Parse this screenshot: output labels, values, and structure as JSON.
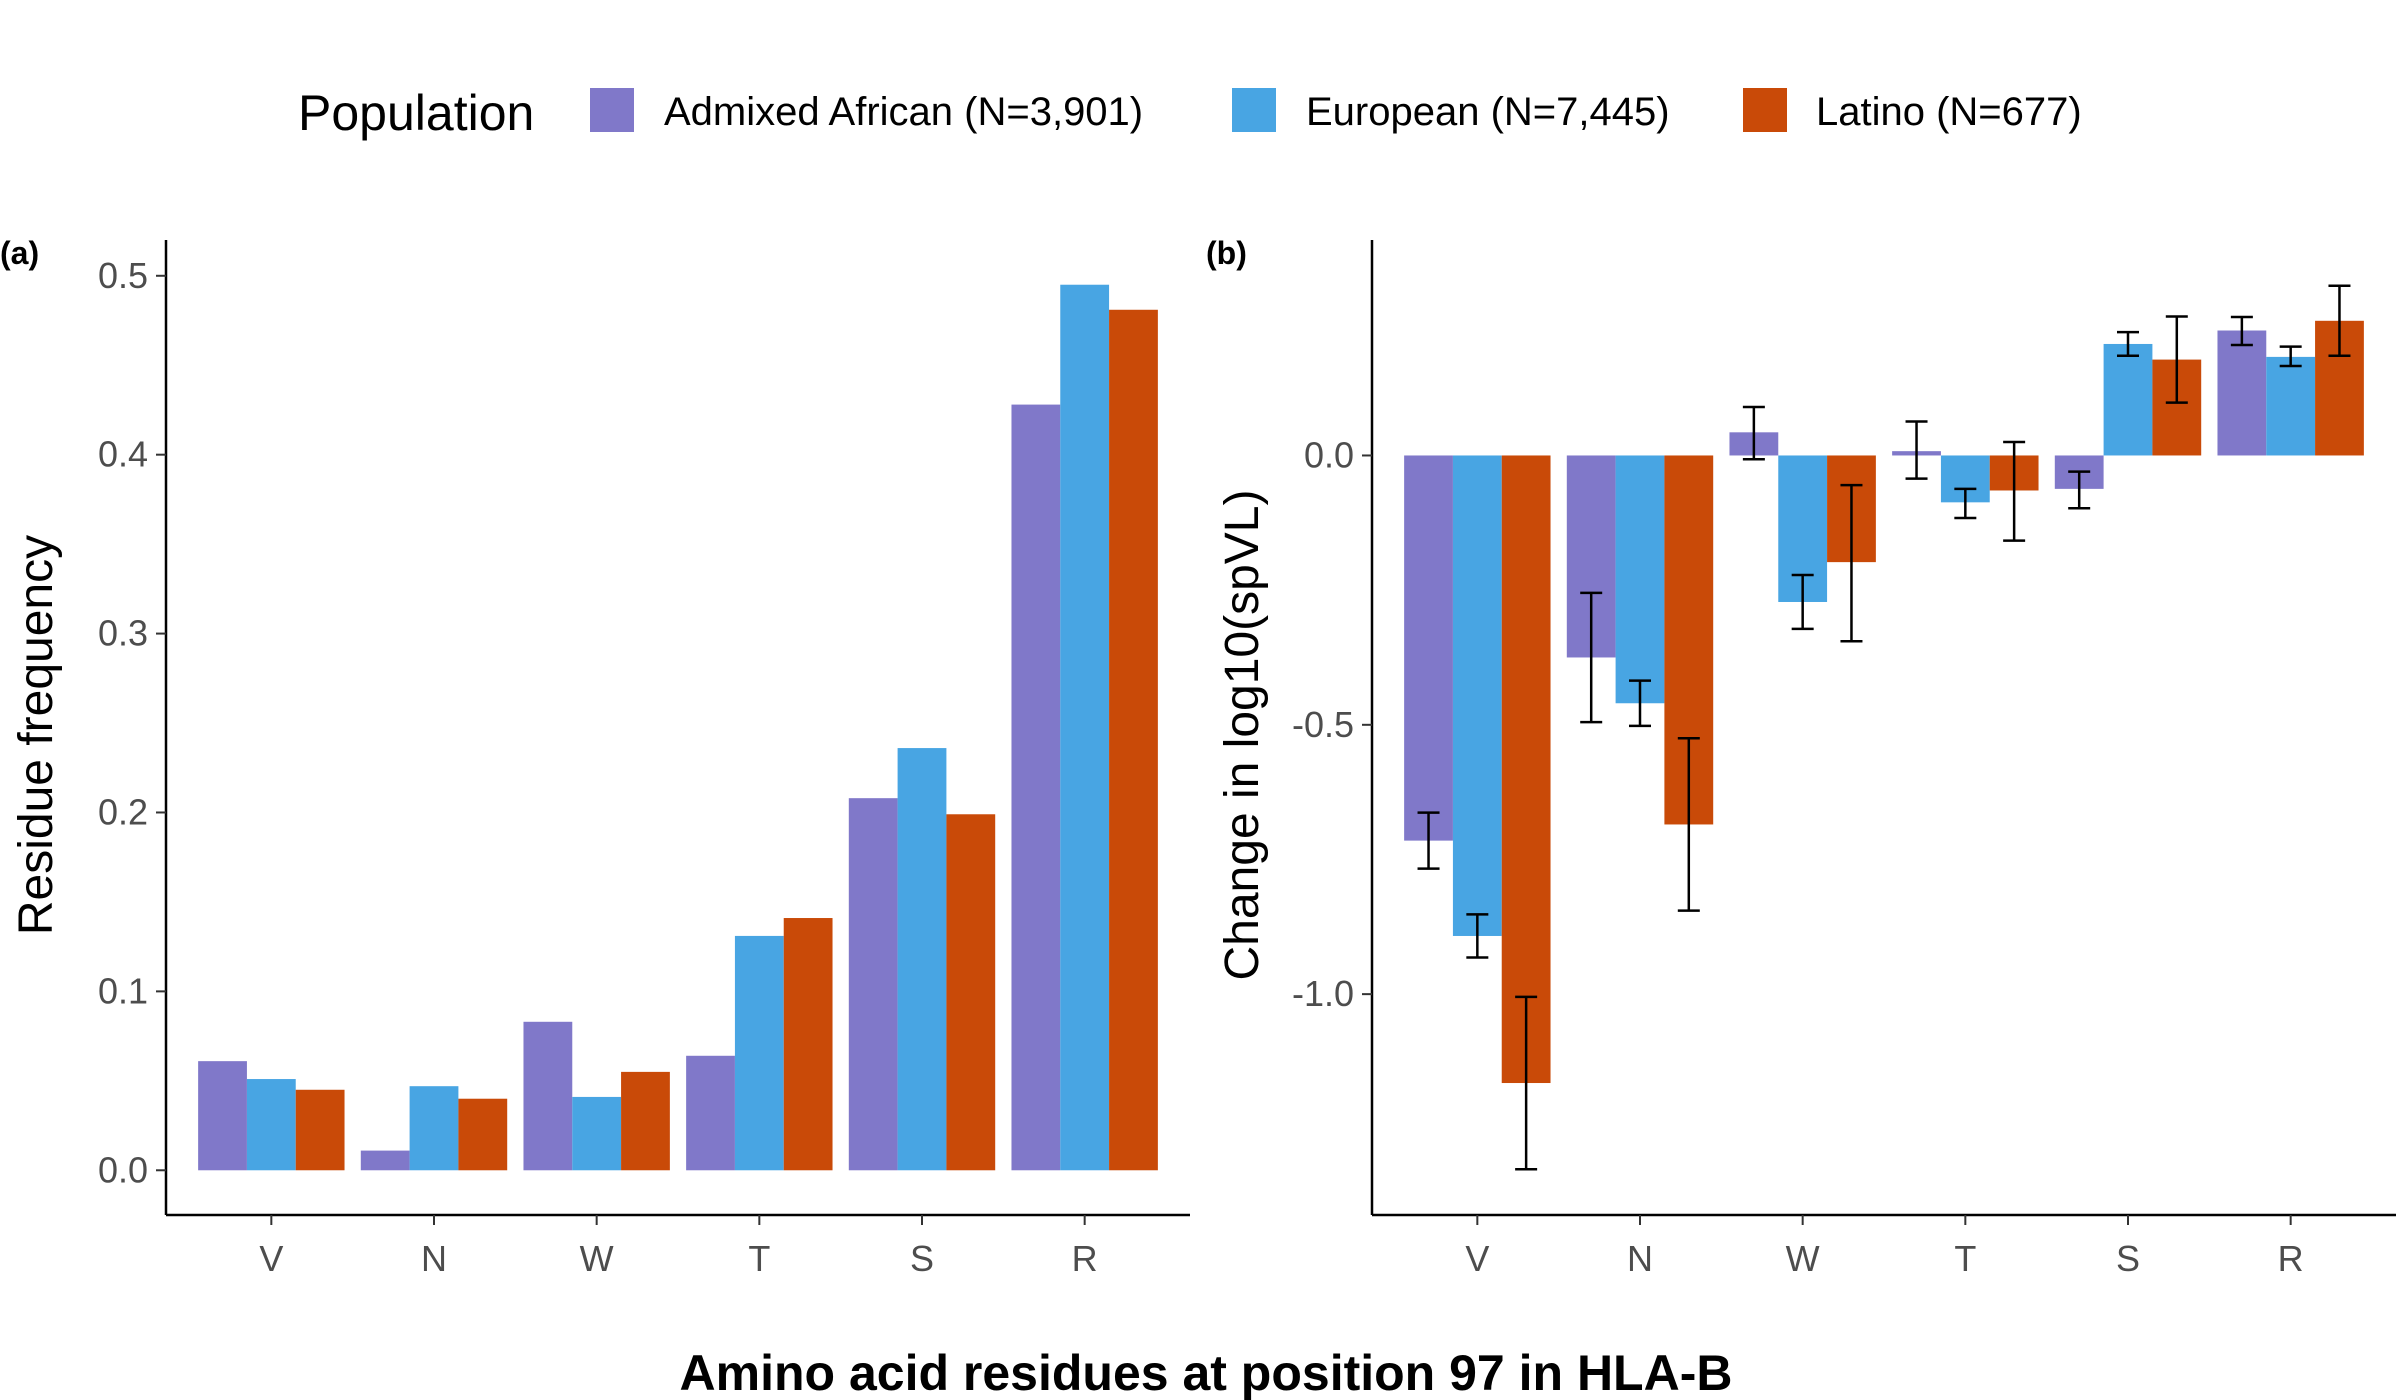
{
  "legend": {
    "title": "Population",
    "items": [
      {
        "label": "Admixed African (N=3,901)",
        "color": "#8078c9"
      },
      {
        "label": "European (N=7,445)",
        "color": "#48a5e3"
      },
      {
        "label": "Latino (N=677)",
        "color": "#c94a08"
      }
    ]
  },
  "shared_xlabel": "Amino acid residues at position 97 in HLA-B",
  "chart_data": [
    {
      "panel": "(a)",
      "type": "bar",
      "categories": [
        "V",
        "N",
        "W",
        "T",
        "S",
        "R"
      ],
      "ylabel": "Residue frequency",
      "ylim": [
        -0.025,
        0.52
      ],
      "yticks": [
        0.0,
        0.1,
        0.2,
        0.3,
        0.4,
        0.5
      ],
      "ytick_labels": [
        "0.0",
        "0.1",
        "0.2",
        "0.3",
        "0.4",
        "0.5"
      ],
      "series": [
        {
          "name": "Admixed African (N=3,901)",
          "values": [
            0.061,
            0.011,
            0.083,
            0.064,
            0.208,
            0.428
          ]
        },
        {
          "name": "European (N=7,445)",
          "values": [
            0.051,
            0.047,
            0.041,
            0.131,
            0.236,
            0.495
          ]
        },
        {
          "name": "Latino (N=677)",
          "values": [
            0.045,
            0.04,
            0.055,
            0.141,
            0.199,
            0.481
          ]
        }
      ]
    },
    {
      "panel": "(b)",
      "type": "bar",
      "categories": [
        "V",
        "N",
        "W",
        "T",
        "S",
        "R"
      ],
      "ylabel": "Change in log10(spVL)",
      "ylim": [
        -1.41,
        0.4
      ],
      "yticks": [
        0.0,
        -0.5,
        -1.0
      ],
      "ytick_labels": [
        "0.0",
        "-0.5",
        "-1.0"
      ],
      "series": [
        {
          "name": "Admixed African (N=3,901)",
          "values": [
            -0.715,
            -0.375,
            0.043,
            0.008,
            -0.062,
            0.232
          ],
          "err_low": [
            -0.767,
            -0.495,
            -0.007,
            -0.043,
            -0.098,
            0.205
          ],
          "err_high": [
            -0.663,
            -0.255,
            0.09,
            0.063,
            -0.03,
            0.257
          ]
        },
        {
          "name": "European (N=7,445)",
          "values": [
            -0.892,
            -0.46,
            -0.272,
            -0.087,
            0.207,
            0.183
          ],
          "err_low": [
            -0.932,
            -0.502,
            -0.322,
            -0.116,
            0.185,
            0.166
          ],
          "err_high": [
            -0.852,
            -0.418,
            -0.222,
            -0.062,
            0.229,
            0.202
          ]
        },
        {
          "name": "Latino (N=677)",
          "values": [
            -1.165,
            -0.685,
            -0.198,
            -0.065,
            0.178,
            0.25
          ],
          "err_low": [
            -1.325,
            -0.845,
            -0.345,
            -0.158,
            0.098,
            0.185
          ],
          "err_high": [
            -1.005,
            -0.525,
            -0.055,
            0.025,
            0.258,
            0.315
          ]
        }
      ]
    }
  ]
}
